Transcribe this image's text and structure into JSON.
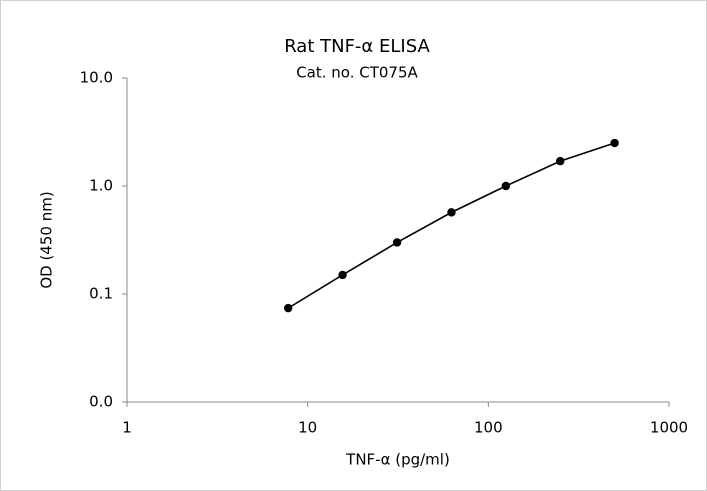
{
  "chart_data": {
    "type": "line",
    "title": "Rat TNF-α ELISA",
    "subtitle": "Cat. no. CT075A",
    "x_label": "TNF-α (pg/ml)",
    "y_label": "OD (450 nm)",
    "x": [
      7.8,
      15.6,
      31.25,
      62.5,
      125,
      250,
      500
    ],
    "series": [
      {
        "color": "#000000",
        "values": [
          0.074,
          0.15,
          0.3,
          0.57,
          1.0,
          1.7,
          2.5
        ]
      }
    ],
    "x_log": true,
    "y_log": true,
    "xlim": [
      1,
      1000
    ],
    "xticks": [
      1,
      10,
      100,
      1000
    ],
    "ylim": [
      0.01,
      10
    ],
    "yticks": [
      {
        "value": 0.01,
        "label": "0.0"
      },
      {
        "value": 0.1,
        "label": "0.1"
      },
      {
        "value": 1,
        "label": "1.0"
      },
      {
        "value": 10,
        "label": "10.0"
      }
    ],
    "grid": false
  }
}
